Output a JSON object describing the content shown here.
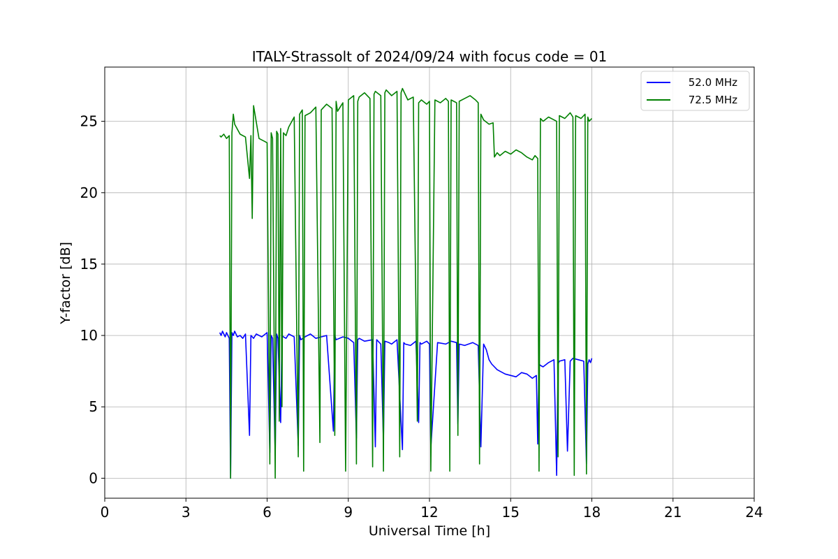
{
  "chart_data": {
    "type": "line",
    "title": "ITALY-Strassolt of 2024/09/24 with focus code = 01",
    "xlabel": "Universal Time [h]",
    "ylabel": "Y-factor [dB]",
    "xlim": [
      0,
      24
    ],
    "ylim": [
      -1.4,
      28.8
    ],
    "xticks": [
      0,
      3,
      6,
      9,
      12,
      15,
      18,
      21,
      24
    ],
    "yticks": [
      0,
      5,
      10,
      15,
      20,
      25
    ],
    "grid": true,
    "legend_position": "top-right",
    "series": [
      {
        "name": "52.0 MHz",
        "color": "#0000ff",
        "x": [
          4.25,
          4.3,
          4.35,
          4.4,
          4.45,
          4.5,
          4.6,
          4.65,
          4.7,
          4.75,
          4.8,
          4.9,
          5.0,
          5.1,
          5.2,
          5.35,
          5.4,
          5.45,
          5.5,
          5.6,
          5.8,
          6.0,
          6.1,
          6.15,
          6.2,
          6.3,
          6.35,
          6.4,
          6.5,
          6.55,
          6.6,
          6.7,
          6.8,
          7.0,
          7.15,
          7.2,
          7.25,
          7.4,
          7.6,
          7.8,
          8.0,
          8.2,
          8.45,
          8.5,
          8.55,
          8.8,
          9.0,
          9.2,
          9.3,
          9.35,
          9.4,
          9.6,
          9.9,
          10.0,
          10.05,
          10.2,
          10.3,
          10.35,
          10.5,
          10.6,
          10.8,
          11.0,
          11.05,
          11.1,
          11.3,
          11.5,
          11.6,
          11.65,
          11.7,
          11.9,
          12.0,
          12.05,
          12.3,
          12.6,
          12.8,
          13.0,
          13.05,
          13.1,
          13.3,
          13.6,
          13.8,
          13.9,
          14.0,
          14.1,
          14.2,
          14.3,
          14.4,
          14.5,
          14.6,
          14.8,
          15.0,
          15.2,
          15.4,
          15.6,
          15.8,
          15.95,
          16.0,
          16.05,
          16.1,
          16.2,
          16.4,
          16.6,
          16.7,
          16.75,
          16.8,
          17.0,
          17.1,
          17.2,
          17.3,
          17.5,
          17.7,
          17.8,
          17.85,
          17.9,
          17.95,
          18.0
        ],
        "values": [
          10.2,
          10.0,
          10.3,
          10.1,
          9.9,
          10.2,
          9.8,
          0.0,
          10.2,
          10.0,
          10.3,
          9.9,
          10.0,
          9.8,
          10.1,
          3.0,
          10.0,
          9.9,
          9.8,
          10.1,
          9.9,
          10.2,
          1.8,
          10.0,
          9.8,
          1.6,
          10.1,
          9.8,
          3.9,
          10.0,
          9.9,
          9.8,
          10.1,
          9.9,
          2.3,
          10.0,
          9.7,
          9.9,
          10.1,
          9.8,
          9.9,
          10.0,
          3.3,
          10.0,
          9.7,
          9.9,
          9.8,
          9.5,
          2.8,
          9.7,
          9.8,
          9.6,
          9.7,
          2.2,
          9.7,
          9.4,
          2.6,
          9.6,
          9.5,
          9.4,
          9.7,
          2.0,
          9.5,
          9.4,
          9.3,
          9.6,
          3.9,
          9.5,
          9.4,
          9.6,
          9.4,
          2.1,
          9.5,
          9.4,
          9.6,
          9.5,
          3.8,
          9.4,
          9.3,
          9.5,
          9.3,
          2.2,
          9.4,
          9.0,
          8.3,
          8.0,
          7.8,
          7.6,
          7.5,
          7.3,
          7.2,
          7.1,
          7.4,
          7.3,
          7.0,
          7.2,
          2.4,
          8.0,
          7.9,
          7.8,
          8.1,
          8.3,
          0.2,
          8.0,
          8.2,
          8.3,
          1.9,
          8.2,
          8.4,
          8.3,
          8.2,
          1.0,
          8.0,
          8.3,
          8.1,
          8.4
        ]
      },
      {
        "name": "72.5 MHz",
        "color": "#008000",
        "x": [
          4.25,
          4.3,
          4.4,
          4.5,
          4.6,
          4.65,
          4.7,
          4.75,
          4.8,
          5.0,
          5.2,
          5.35,
          5.4,
          5.45,
          5.5,
          5.7,
          5.9,
          6.0,
          6.1,
          6.15,
          6.2,
          6.3,
          6.35,
          6.4,
          6.45,
          6.5,
          6.55,
          6.6,
          6.7,
          6.8,
          7.0,
          7.15,
          7.2,
          7.3,
          7.35,
          7.4,
          7.6,
          7.8,
          7.95,
          8.0,
          8.2,
          8.4,
          8.5,
          8.55,
          8.6,
          8.8,
          8.9,
          9.0,
          9.2,
          9.3,
          9.35,
          9.4,
          9.6,
          9.8,
          9.9,
          9.95,
          10.0,
          10.2,
          10.3,
          10.35,
          10.4,
          10.6,
          10.8,
          10.9,
          10.95,
          11.0,
          11.2,
          11.4,
          11.55,
          11.6,
          11.7,
          11.9,
          12.0,
          12.05,
          12.2,
          12.4,
          12.6,
          12.7,
          12.75,
          12.8,
          13.0,
          13.05,
          13.1,
          13.3,
          13.5,
          13.7,
          13.8,
          13.85,
          13.9,
          14.0,
          14.2,
          14.35,
          14.4,
          14.5,
          14.6,
          14.8,
          15.0,
          15.2,
          15.4,
          15.6,
          15.8,
          15.9,
          16.0,
          16.05,
          16.1,
          16.2,
          16.4,
          16.6,
          16.7,
          16.75,
          16.8,
          17.0,
          17.2,
          17.3,
          17.35,
          17.4,
          17.6,
          17.75,
          17.8,
          17.85,
          17.9,
          18.0
        ],
        "values": [
          24.0,
          23.9,
          24.1,
          23.8,
          24.0,
          0.0,
          24.2,
          25.5,
          24.8,
          24.1,
          23.9,
          21.0,
          24.0,
          18.2,
          26.1,
          23.8,
          23.6,
          23.5,
          1.0,
          24.2,
          23.8,
          0.0,
          24.3,
          24.1,
          4.0,
          24.5,
          5.0,
          24.2,
          24.0,
          24.6,
          25.3,
          1.5,
          25.5,
          25.8,
          0.5,
          25.4,
          25.6,
          26.0,
          2.5,
          25.8,
          26.2,
          25.9,
          3.0,
          26.4,
          25.7,
          26.3,
          0.5,
          26.5,
          26.8,
          1.0,
          26.4,
          26.7,
          27.0,
          26.6,
          0.8,
          26.9,
          27.1,
          26.8,
          0.5,
          27.0,
          27.2,
          26.8,
          27.1,
          1.5,
          27.0,
          27.3,
          26.5,
          26.7,
          4.0,
          26.3,
          26.5,
          26.2,
          26.4,
          0.5,
          26.5,
          26.3,
          26.6,
          26.4,
          0.5,
          26.5,
          26.3,
          3.0,
          26.4,
          26.6,
          26.8,
          26.5,
          26.3,
          1.0,
          25.5,
          25.1,
          24.8,
          24.9,
          22.5,
          22.8,
          22.6,
          22.9,
          22.7,
          23.0,
          22.8,
          22.5,
          22.3,
          22.6,
          22.4,
          0.5,
          25.2,
          25.0,
          25.3,
          25.1,
          25.0,
          1.5,
          25.4,
          25.2,
          25.6,
          25.3,
          0.2,
          25.4,
          25.2,
          25.5,
          0.3,
          25.3,
          25.0,
          25.2
        ]
      }
    ]
  }
}
